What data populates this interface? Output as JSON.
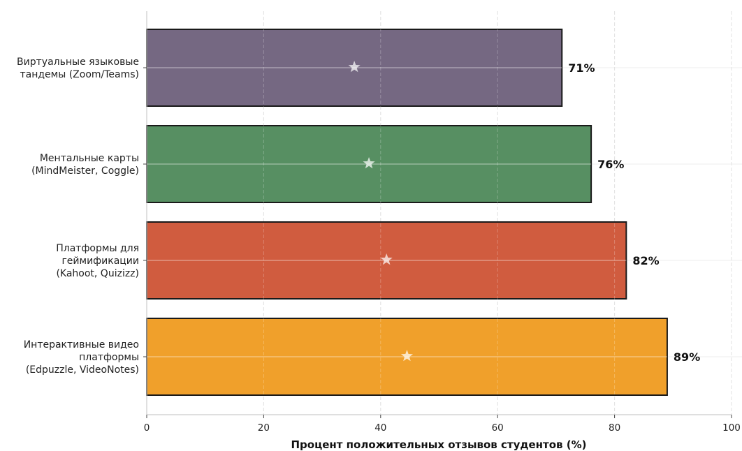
{
  "chart_data": {
    "type": "bar",
    "orientation": "horizontal",
    "categories": [
      [
        "Виртуальные языковые",
        "тандемы (Zoom/Teams)"
      ],
      [
        "Ментальные карты",
        "(MindMeister, Coggle)"
      ],
      [
        "Платформы для",
        "геймификации",
        "(Kahoot, Quizizz)"
      ],
      [
        "Интерактивные видео",
        "платформы",
        "(Edpuzzle, VideoNotes)"
      ]
    ],
    "values": [
      71,
      76,
      82,
      89
    ],
    "value_labels": [
      "71%",
      "76%",
      "82%",
      "89%"
    ],
    "colors": [
      "#756882",
      "#578f62",
      "#d05c3f",
      "#f0a02b"
    ],
    "marker": "star",
    "xlabel": "Процент положительных отзывов студентов (%)",
    "ylabel": "",
    "xlim": [
      0,
      100
    ],
    "xticks": [
      0,
      20,
      40,
      60,
      80,
      100
    ],
    "grid": true
  }
}
